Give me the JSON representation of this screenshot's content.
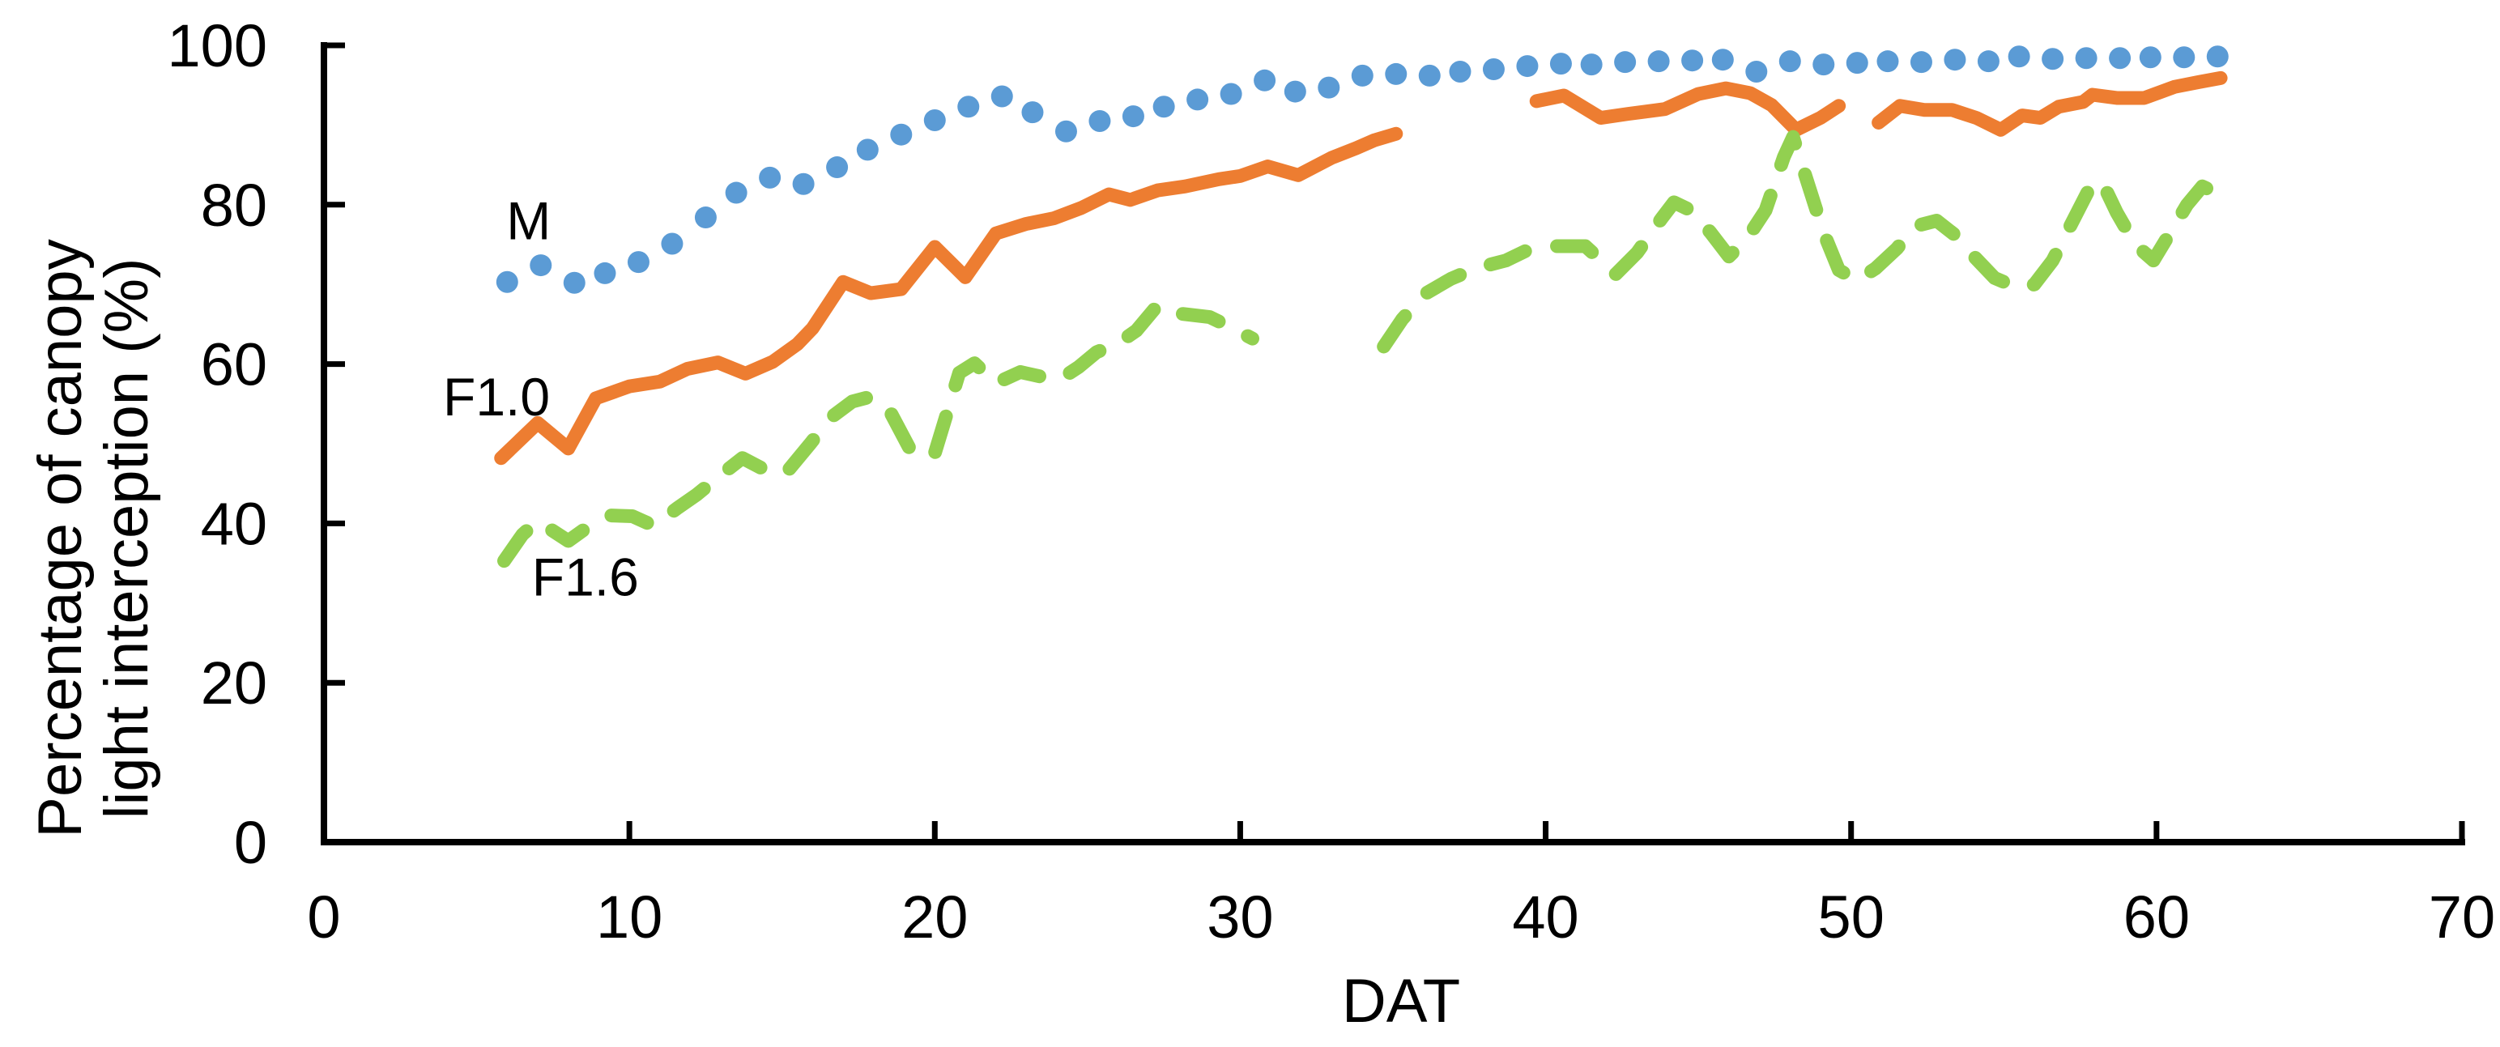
{
  "chart_data": {
    "type": "line",
    "title": "",
    "xlabel": "DAT",
    "ylabel_lines": [
      "Percentage of canopy",
      "light interception (%)"
    ],
    "xlim": [
      0,
      70
    ],
    "ylim": [
      0,
      100
    ],
    "x_ticks": [
      0,
      10,
      20,
      30,
      40,
      50,
      60,
      70
    ],
    "y_ticks": [
      0,
      20,
      40,
      60,
      80,
      100
    ],
    "grid": false,
    "legend_position": "inline-labels",
    "tick_style": "inside",
    "series": [
      {
        "name": "M",
        "label": "M",
        "color": "#5B9BD5",
        "style": "dots",
        "marker_radius": 13.5,
        "label_pos": [
          6.7,
          78.0
        ],
        "segments": [
          [
            [
              6.0,
              70.3
            ],
            [
              7.1,
              72.4
            ],
            [
              8.2,
              70.2
            ],
            [
              9.2,
              71.4
            ],
            [
              10.3,
              72.8
            ],
            [
              11.4,
              75.1
            ],
            [
              12.5,
              78.4
            ],
            [
              13.5,
              81.5
            ],
            [
              14.6,
              83.4
            ],
            [
              15.7,
              82.6
            ],
            [
              16.8,
              84.7
            ],
            [
              17.8,
              86.9
            ],
            [
              18.9,
              88.8
            ],
            [
              20.0,
              90.6
            ],
            [
              21.1,
              92.3
            ],
            [
              22.2,
              93.6
            ],
            [
              23.2,
              91.6
            ],
            [
              24.3,
              89.2
            ],
            [
              25.4,
              90.5
            ],
            [
              26.5,
              91.1
            ],
            [
              27.5,
              92.3
            ],
            [
              28.6,
              93.2
            ],
            [
              29.7,
              93.9
            ],
            [
              30.8,
              95.6
            ],
            [
              31.8,
              94.2
            ],
            [
              32.9,
              94.7
            ],
            [
              34.0,
              96.2
            ],
            [
              35.1,
              96.4
            ],
            [
              36.2,
              96.2
            ],
            [
              37.2,
              96.7
            ],
            [
              38.3,
              97.0
            ],
            [
              39.4,
              97.4
            ],
            [
              40.5,
              97.7
            ],
            [
              41.5,
              97.6
            ],
            [
              42.6,
              97.9
            ],
            [
              43.7,
              98.0
            ],
            [
              44.8,
              98.1
            ],
            [
              45.8,
              98.2
            ],
            [
              46.9,
              96.7
            ],
            [
              48.0,
              98.0
            ],
            [
              49.1,
              97.6
            ],
            [
              50.2,
              97.8
            ],
            [
              51.2,
              98.0
            ],
            [
              52.3,
              97.9
            ],
            [
              53.4,
              98.2
            ],
            [
              54.5,
              98.0
            ],
            [
              55.5,
              98.6
            ],
            [
              56.6,
              98.3
            ],
            [
              57.7,
              98.4
            ],
            [
              58.8,
              98.4
            ],
            [
              59.8,
              98.5
            ],
            [
              60.9,
              98.5
            ],
            [
              62.0,
              98.6
            ]
          ]
        ]
      },
      {
        "name": "F1.0",
        "label": "F1.0",
        "color": "#ED7D31",
        "style": "solid",
        "label_pos": [
          5.65,
          55.9
        ],
        "segments": [
          [
            [
              5.8,
              48.2
            ],
            [
              7.0,
              52.6
            ],
            [
              8.0,
              49.4
            ],
            [
              8.9,
              55.7
            ],
            [
              10.0,
              57.2
            ],
            [
              11.0,
              57.8
            ],
            [
              11.9,
              59.4
            ],
            [
              12.9,
              60.2
            ],
            [
              13.8,
              58.8
            ],
            [
              14.7,
              60.3
            ],
            [
              15.5,
              62.5
            ],
            [
              16.0,
              64.5
            ],
            [
              17.0,
              70.3
            ],
            [
              17.9,
              68.9
            ],
            [
              18.9,
              69.4
            ],
            [
              20.0,
              74.7
            ],
            [
              21.0,
              70.9
            ],
            [
              22.0,
              76.4
            ],
            [
              23.0,
              77.6
            ],
            [
              23.9,
              78.3
            ],
            [
              24.8,
              79.6
            ],
            [
              25.7,
              81.3
            ],
            [
              26.4,
              80.6
            ],
            [
              27.3,
              81.8
            ],
            [
              28.2,
              82.3
            ],
            [
              29.3,
              83.2
            ],
            [
              30.0,
              83.6
            ],
            [
              30.9,
              84.8
            ],
            [
              31.9,
              83.7
            ],
            [
              33.0,
              85.9
            ],
            [
              33.8,
              87.1
            ],
            [
              34.4,
              88.1
            ],
            [
              35.1,
              88.9
            ]
          ],
          [
            [
              39.7,
              93.0
            ],
            [
              40.6,
              93.7
            ],
            [
              41.8,
              90.9
            ],
            [
              42.7,
              91.4
            ],
            [
              43.9,
              92.0
            ],
            [
              45.0,
              93.9
            ],
            [
              45.9,
              94.6
            ],
            [
              46.7,
              94.0
            ],
            [
              47.4,
              92.5
            ],
            [
              48.2,
              89.4
            ],
            [
              49.0,
              90.9
            ],
            [
              49.6,
              92.4
            ]
          ],
          [
            [
              50.9,
              90.3
            ],
            [
              51.6,
              92.4
            ],
            [
              52.4,
              91.9
            ],
            [
              53.3,
              91.9
            ],
            [
              54.1,
              90.9
            ],
            [
              54.9,
              89.4
            ],
            [
              55.6,
              91.2
            ],
            [
              56.2,
              90.9
            ],
            [
              56.8,
              92.3
            ],
            [
              57.6,
              92.9
            ],
            [
              57.9,
              93.8
            ],
            [
              58.7,
              93.4
            ],
            [
              59.6,
              93.4
            ],
            [
              60.6,
              94.8
            ],
            [
              61.4,
              95.4
            ],
            [
              62.1,
              95.9
            ]
          ]
        ]
      },
      {
        "name": "F1.6",
        "label": "F1.6",
        "color": "#92D050",
        "style": "dashed",
        "label_pos": [
          8.56,
          33.3
        ],
        "segments": [
          [
            [
              5.9,
              35.3
            ],
            [
              6.5,
              38.6
            ],
            [
              7.0,
              40.3
            ],
            [
              8.0,
              37.8
            ],
            [
              8.8,
              40.0
            ],
            [
              9.4,
              41.0
            ],
            [
              10.1,
              40.9
            ],
            [
              10.8,
              39.7
            ],
            [
              11.6,
              42.0
            ],
            [
              12.2,
              43.6
            ],
            [
              13.0,
              46.1
            ],
            [
              13.7,
              48.2
            ],
            [
              14.4,
              46.8
            ],
            [
              15.1,
              46.2
            ],
            [
              15.9,
              49.9
            ],
            [
              16.6,
              53.3
            ],
            [
              17.3,
              55.3
            ],
            [
              17.9,
              55.9
            ],
            [
              18.5,
              54.3
            ],
            [
              19.3,
              48.5
            ],
            [
              20.0,
              48.8
            ],
            [
              20.8,
              58.9
            ],
            [
              21.3,
              60.1
            ],
            [
              22.0,
              57.6
            ],
            [
              22.8,
              59.0
            ],
            [
              23.5,
              58.4
            ],
            [
              24.1,
              58.1
            ],
            [
              24.7,
              59.6
            ],
            [
              25.3,
              61.5
            ],
            [
              26.0,
              62.6
            ],
            [
              26.6,
              64.2
            ],
            [
              27.3,
              67.4
            ],
            [
              28.1,
              66.3
            ],
            [
              29.0,
              65.9
            ],
            [
              29.7,
              64.6
            ],
            [
              30.4,
              63.2
            ]
          ],
          [
            [
              34.7,
              62.2
            ],
            [
              35.3,
              65.6
            ],
            [
              36.0,
              68.7
            ],
            [
              36.9,
              70.7
            ],
            [
              37.7,
              72.0
            ],
            [
              38.7,
              73.0
            ],
            [
              39.4,
              74.3
            ],
            [
              40.3,
              74.8
            ],
            [
              41.3,
              74.8
            ],
            [
              42.3,
              71.3
            ],
            [
              43.0,
              74.0
            ],
            [
              43.8,
              78.3
            ],
            [
              44.2,
              80.3
            ],
            [
              44.8,
              79.2
            ],
            [
              45.4,
              76.5
            ],
            [
              46.0,
              73.5
            ],
            [
              46.6,
              75.8
            ],
            [
              47.2,
              79.3
            ],
            [
              47.8,
              86.0
            ],
            [
              48.1,
              88.5
            ],
            [
              48.6,
              82.5
            ],
            [
              49.1,
              76.5
            ],
            [
              49.6,
              71.8
            ],
            [
              50.2,
              70.5
            ],
            [
              50.8,
              72.0
            ],
            [
              51.5,
              74.5
            ],
            [
              52.1,
              77.3
            ],
            [
              52.8,
              78.0
            ],
            [
              53.4,
              76.2
            ],
            [
              54.0,
              73.6
            ],
            [
              54.7,
              70.8
            ],
            [
              55.5,
              69.5
            ],
            [
              56.0,
              70.0
            ],
            [
              56.6,
              73.0
            ],
            [
              57.2,
              77.5
            ],
            [
              57.8,
              82.0
            ],
            [
              58.2,
              83.0
            ],
            [
              58.7,
              79.0
            ],
            [
              59.3,
              75.0
            ],
            [
              59.9,
              73.0
            ],
            [
              60.5,
              76.8
            ],
            [
              61.0,
              80.0
            ],
            [
              61.5,
              82.3
            ],
            [
              62.0,
              81.4
            ]
          ]
        ]
      }
    ],
    "colors": {
      "axis": "#000000",
      "text": "#000000",
      "series_M": "#5B9BD5",
      "series_F1_0": "#ED7D31",
      "series_F1_6": "#92D050",
      "background": "#FFFFFF"
    }
  }
}
